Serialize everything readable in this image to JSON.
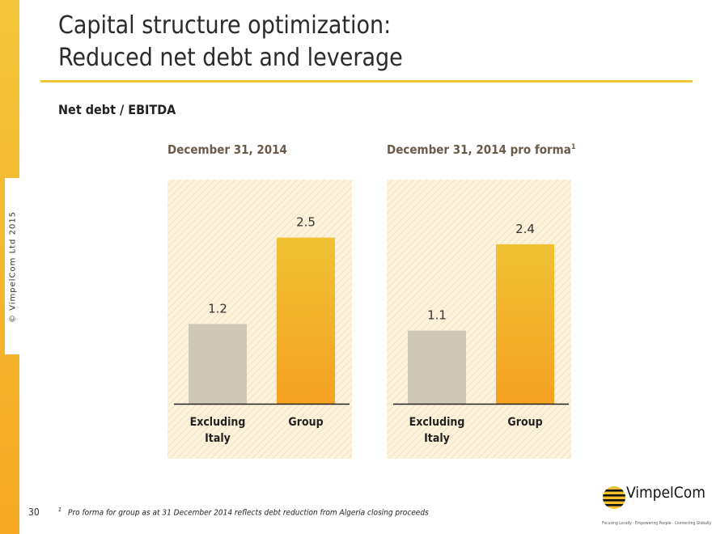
{
  "copyright": "© VimpelCom Ltd 2015",
  "title": {
    "line1": "Capital structure optimization:",
    "line2": "Reduced net debt and leverage"
  },
  "subtitle": "Net debt / EBITDA",
  "chart_data": [
    {
      "type": "bar",
      "title": "December 31, 2014",
      "title_sup": "",
      "categories": [
        [
          "Excluding",
          "Italy"
        ],
        [
          "Group"
        ]
      ],
      "values": [
        1.2,
        2.5
      ],
      "value_labels": [
        "1.2",
        "2.5"
      ],
      "ylim": [
        0,
        2.8
      ],
      "colors": [
        "#cfc7b8",
        "#f4ab24"
      ]
    },
    {
      "type": "bar",
      "title": "December 31, 2014 pro forma",
      "title_sup": "1",
      "categories": [
        [
          "Excluding",
          "Italy"
        ],
        [
          "Group"
        ]
      ],
      "values": [
        1.1,
        2.4
      ],
      "value_labels": [
        "1.1",
        "2.4"
      ],
      "ylim": [
        0,
        2.8
      ],
      "colors": [
        "#cfc7b8",
        "#f4ab24"
      ]
    }
  ],
  "page_number": "30",
  "footnote": {
    "marker": "1",
    "text": "Pro forma for group as at 31 December 2014 reflects debt reduction from Algeria closing proceeds"
  },
  "logo": {
    "name": "VimpelCom",
    "tagline": "Focusing Locally · Empowering People · Connecting Globally"
  }
}
